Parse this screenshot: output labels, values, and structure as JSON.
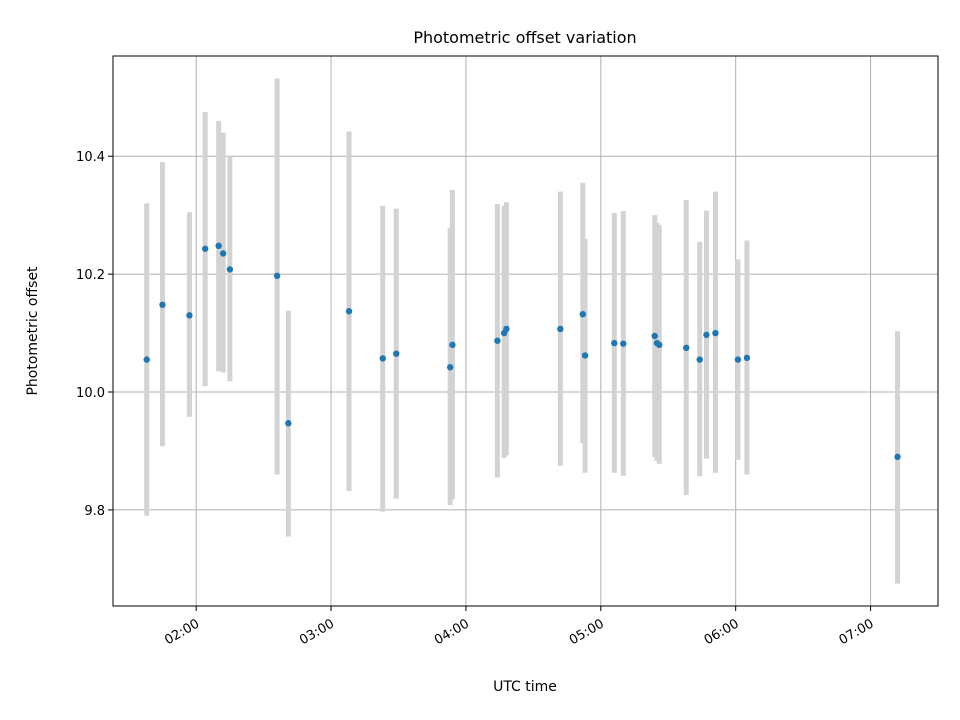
{
  "chart_data": {
    "type": "scatter",
    "title": "Photometric offset variation",
    "xlabel": "UTC time",
    "ylabel": "Photometric offset",
    "x_tick_labels": [
      "02:00",
      "03:00",
      "04:00",
      "05:00",
      "06:00",
      "07:00"
    ],
    "x_ticks": [
      "02:00",
      "03:00",
      "04:00",
      "05:00",
      "06:00",
      "07:00"
    ],
    "xlim": [
      "01:23",
      "07:30"
    ],
    "y_ticks": [
      9.8,
      10.0,
      10.2,
      10.4
    ],
    "y_tick_labels": [
      "9.8",
      "10.0",
      "10.2",
      "10.4"
    ],
    "ylim": [
      9.637,
      10.57
    ],
    "grid": true,
    "marker_color": "#1f77b4",
    "errorbar_color": "#d3d3d3",
    "points": [
      {
        "t": "01:38",
        "y": 10.055,
        "lo": 9.79,
        "hi": 10.32
      },
      {
        "t": "01:45",
        "y": 10.148,
        "lo": 9.908,
        "hi": 10.39
      },
      {
        "t": "01:57",
        "y": 10.13,
        "lo": 9.958,
        "hi": 10.305
      },
      {
        "t": "02:04",
        "y": 10.243,
        "lo": 10.01,
        "hi": 10.475
      },
      {
        "t": "02:10",
        "y": 10.248,
        "lo": 10.035,
        "hi": 10.46
      },
      {
        "t": "02:12",
        "y": 10.235,
        "lo": 10.033,
        "hi": 10.44
      },
      {
        "t": "02:15",
        "y": 10.208,
        "lo": 10.018,
        "hi": 10.4
      },
      {
        "t": "02:36",
        "y": 10.197,
        "lo": 9.86,
        "hi": 10.532
      },
      {
        "t": "02:41",
        "y": 9.947,
        "lo": 9.755,
        "hi": 10.138
      },
      {
        "t": "03:08",
        "y": 10.137,
        "lo": 9.832,
        "hi": 10.442
      },
      {
        "t": "03:23",
        "y": 10.057,
        "lo": 9.797,
        "hi": 10.316
      },
      {
        "t": "03:29",
        "y": 10.065,
        "lo": 9.819,
        "hi": 10.311
      },
      {
        "t": "03:53",
        "y": 10.042,
        "lo": 9.808,
        "hi": 10.278
      },
      {
        "t": "03:54",
        "y": 10.08,
        "lo": 9.818,
        "hi": 10.343
      },
      {
        "t": "04:14",
        "y": 10.087,
        "lo": 9.855,
        "hi": 10.319
      },
      {
        "t": "04:17",
        "y": 10.1,
        "lo": 9.888,
        "hi": 10.316
      },
      {
        "t": "04:18",
        "y": 10.107,
        "lo": 9.893,
        "hi": 10.322
      },
      {
        "t": "04:42",
        "y": 10.107,
        "lo": 9.875,
        "hi": 10.34
      },
      {
        "t": "04:52",
        "y": 10.132,
        "lo": 9.913,
        "hi": 10.355
      },
      {
        "t": "04:53",
        "y": 10.062,
        "lo": 9.863,
        "hi": 10.26
      },
      {
        "t": "05:06",
        "y": 10.083,
        "lo": 9.863,
        "hi": 10.304
      },
      {
        "t": "05:10",
        "y": 10.082,
        "lo": 9.858,
        "hi": 10.307
      },
      {
        "t": "05:24",
        "y": 10.095,
        "lo": 9.89,
        "hi": 10.3
      },
      {
        "t": "05:25",
        "y": 10.083,
        "lo": 9.883,
        "hi": 10.287
      },
      {
        "t": "05:26",
        "y": 10.08,
        "lo": 9.878,
        "hi": 10.283
      },
      {
        "t": "05:38",
        "y": 10.075,
        "lo": 9.825,
        "hi": 10.326
      },
      {
        "t": "05:44",
        "y": 10.055,
        "lo": 9.857,
        "hi": 10.255
      },
      {
        "t": "05:47",
        "y": 10.097,
        "lo": 9.887,
        "hi": 10.308
      },
      {
        "t": "05:51",
        "y": 10.1,
        "lo": 9.863,
        "hi": 10.34
      },
      {
        "t": "06:01",
        "y": 10.055,
        "lo": 9.885,
        "hi": 10.225
      },
      {
        "t": "06:05",
        "y": 10.058,
        "lo": 9.86,
        "hi": 10.257
      },
      {
        "t": "07:12",
        "y": 9.89,
        "lo": 9.675,
        "hi": 10.103
      }
    ]
  }
}
